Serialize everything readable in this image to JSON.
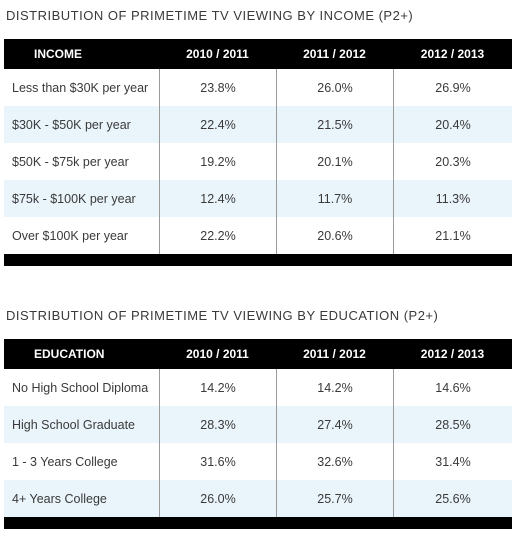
{
  "income": {
    "title": "DISTRIBUTION OF PRIMETIME TV VIEWING BY INCOME (P2+)",
    "headers": [
      "INCOME",
      "2010 / 2011",
      "2011 / 2012",
      "2012 / 2013"
    ],
    "rows": [
      [
        "Less than $30K per year",
        "23.8%",
        "26.0%",
        "26.9%"
      ],
      [
        "$30K - $50K per year",
        "22.4%",
        "21.5%",
        "20.4%"
      ],
      [
        "$50K - $75k per year",
        "19.2%",
        "20.1%",
        "20.3%"
      ],
      [
        "$75k - $100K per year",
        "12.4%",
        "11.7%",
        "11.3%"
      ],
      [
        "Over $100K per year",
        "22.2%",
        "20.6%",
        "21.1%"
      ]
    ]
  },
  "education": {
    "title": "DISTRIBUTION OF PRIMETIME TV VIEWING BY EDUCATION (P2+)",
    "headers": [
      "EDUCATION",
      "2010 / 2011",
      "2011 / 2012",
      "2012 / 2013"
    ],
    "rows": [
      [
        "No High School Diploma",
        "14.2%",
        "14.2%",
        "14.6%"
      ],
      [
        "High School Graduate",
        "28.3%",
        "27.4%",
        "28.5%"
      ],
      [
        "1 - 3 Years College",
        "31.6%",
        "32.6%",
        "31.4%"
      ],
      [
        "4+ Years College",
        "26.0%",
        "25.7%",
        "25.6%"
      ]
    ]
  },
  "colors": {
    "header_bg": "#000000",
    "alt_row_bg": "#e9f4fb",
    "text": "#3a3a3a"
  }
}
